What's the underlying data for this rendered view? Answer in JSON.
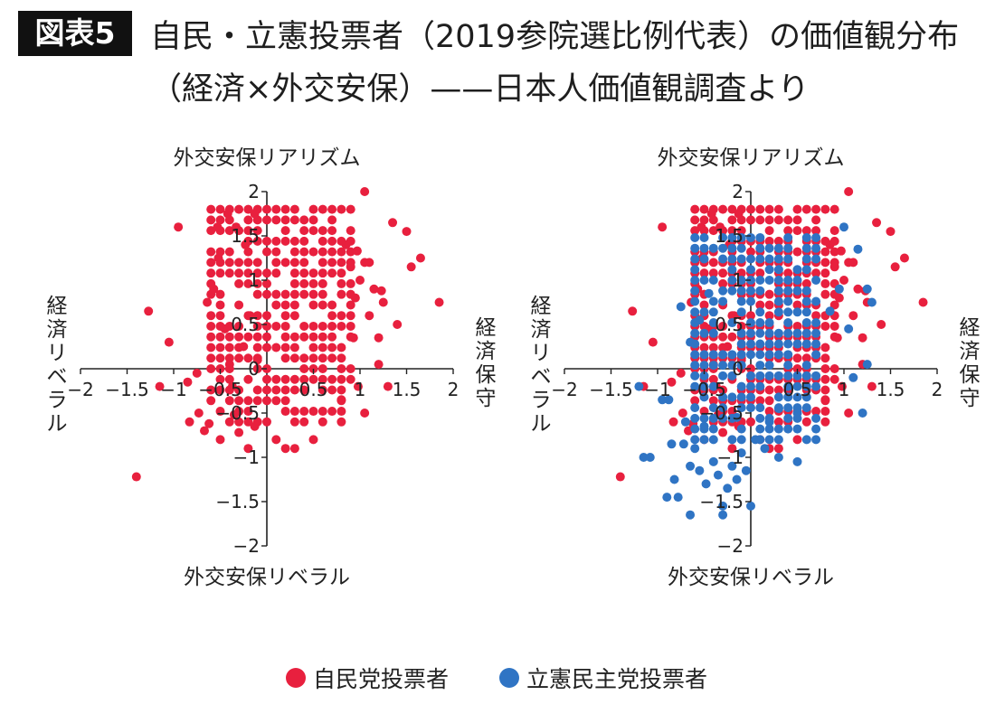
{
  "header": {
    "figure_label": "図表5",
    "title_line1": "自民・立憲投票者（2019参院選比例代表）の価値観分布",
    "title_line2": "（経済×外交安保）——日本人価値観調査より"
  },
  "legend": {
    "ldp": "自民党投票者",
    "cdp": "立憲民主党投票者"
  },
  "colors": {
    "ldp": "#e8203e",
    "cdp": "#2f74c4",
    "axis": "#222222"
  },
  "chart_data": [
    {
      "type": "scatter",
      "axis_labels": {
        "top": "外交安保リアリズム",
        "bottom": "外交安保リベラル",
        "left": "経済リベラル",
        "right": "経済保守"
      },
      "xlim": [
        -2,
        2
      ],
      "ylim": [
        -2,
        2
      ],
      "x_ticks": [
        "-2",
        "-1.5",
        "-1",
        "-0.5",
        "0",
        "0.5",
        "1",
        "1.5",
        "2"
      ],
      "y_ticks": [
        "-2",
        "-1.5",
        "-1",
        "-0.5",
        "0",
        "0.5",
        "1",
        "1.5",
        "2"
      ],
      "grid": false,
      "series": [
        {
          "name": "自民党投票者",
          "color": "#e8203e",
          "points": [
            [
              -1.4,
              -1.22
            ],
            [
              -1.27,
              0.65
            ],
            [
              -1.15,
              -0.2
            ],
            [
              -1.05,
              0.3
            ],
            [
              -0.95,
              1.6
            ],
            [
              -0.85,
              -0.15
            ],
            [
              -0.83,
              -0.6
            ],
            [
              -0.75,
              -0.05
            ],
            [
              -0.73,
              -0.5
            ],
            [
              -0.67,
              -0.7
            ],
            [
              -0.64,
              0.75
            ],
            [
              -0.62,
              -0.62
            ],
            [
              -0.57,
              0.9
            ],
            [
              -0.53,
              1.6
            ],
            [
              -0.52,
              1.25
            ],
            [
              -0.5,
              -0.8
            ],
            [
              -0.45,
              0.45
            ],
            [
              -0.42,
              1.75
            ],
            [
              -0.4,
              0.05
            ],
            [
              -0.37,
              -0.2
            ],
            [
              -0.35,
              -0.52
            ],
            [
              -0.33,
              1.6
            ],
            [
              -0.3,
              -0.72
            ],
            [
              -0.25,
              0.25
            ],
            [
              -0.23,
              1.4
            ],
            [
              -0.2,
              -0.9
            ],
            [
              -0.18,
              0.6
            ],
            [
              -0.13,
              1.75
            ],
            [
              -0.13,
              -0.65
            ],
            [
              -0.1,
              0.1
            ],
            [
              0.1,
              -0.8
            ],
            [
              0.2,
              -0.9
            ],
            [
              0.3,
              -0.9
            ],
            [
              0.5,
              -0.8
            ],
            [
              0.8,
              -0.35
            ],
            [
              0.85,
              1.4
            ],
            [
              0.9,
              1.15
            ],
            [
              0.95,
              0.8
            ],
            [
              0.98,
              -0.2
            ],
            [
              1.05,
              -0.5
            ],
            [
              1.05,
              1.2
            ],
            [
              1.1,
              1.2
            ],
            [
              1.15,
              0.9
            ],
            [
              1.2,
              0.05
            ],
            [
              1.25,
              0.75
            ],
            [
              1.3,
              -0.2
            ],
            [
              1.35,
              1.65
            ],
            [
              1.4,
              0.5
            ],
            [
              1.5,
              1.55
            ],
            [
              1.55,
              1.15
            ],
            [
              1.65,
              1.25
            ],
            [
              1.85,
              0.75
            ],
            [
              1.05,
              2.0
            ],
            [
              1.23,
              0.88
            ],
            [
              0.93,
              0.35
            ],
            [
              0.97,
              1.33
            ],
            [
              1.1,
              0.6
            ],
            [
              1.0,
              1.0
            ],
            [
              1.2,
              0.35
            ]
          ],
          "grid_cluster": {
            "x_range": [
              -0.6,
              0.9
            ],
            "y_range": [
              -0.6,
              1.8
            ],
            "step": 0.1,
            "note": "dense block of points"
          }
        },
        {
          "name": "立憲民主党投票者",
          "color": "#2f74c4",
          "points": [
            [
              -1.2,
              -0.2
            ],
            [
              -1.15,
              -1.0
            ],
            [
              -1.08,
              -1.0
            ],
            [
              -0.95,
              -0.35
            ],
            [
              -0.88,
              -0.35
            ],
            [
              -0.85,
              -0.85
            ],
            [
              -0.9,
              -1.45
            ],
            [
              -0.82,
              -1.25
            ],
            [
              -0.78,
              -1.45
            ],
            [
              -0.72,
              -0.85
            ],
            [
              -0.7,
              -0.6
            ],
            [
              -0.65,
              -1.1
            ],
            [
              -0.6,
              -0.9
            ],
            [
              -0.55,
              -1.15
            ],
            [
              -0.5,
              -0.65
            ],
            [
              -0.48,
              -1.3
            ],
            [
              -0.4,
              -1.05
            ],
            [
              -0.35,
              -1.2
            ],
            [
              -0.3,
              -1.55
            ],
            [
              -0.25,
              -1.35
            ],
            [
              -0.2,
              -1.1
            ],
            [
              -0.15,
              -1.25
            ],
            [
              -0.1,
              -0.95
            ],
            [
              -0.05,
              -1.15
            ],
            [
              0.0,
              -1.55
            ],
            [
              0.05,
              -0.8
            ],
            [
              0.15,
              -0.9
            ],
            [
              0.3,
              -1.0
            ],
            [
              0.5,
              -1.05
            ],
            [
              -0.65,
              -1.65
            ],
            [
              -0.3,
              -1.65
            ],
            [
              -0.15,
              -0.55
            ],
            [
              0.2,
              -0.6
            ],
            [
              0.3,
              -0.45
            ],
            [
              0.5,
              -0.5
            ],
            [
              -0.75,
              0.7
            ],
            [
              -0.65,
              0.3
            ],
            [
              -0.55,
              0.55
            ],
            [
              -0.45,
              0.85
            ],
            [
              1.05,
              0.45
            ],
            [
              1.1,
              -0.1
            ],
            [
              1.15,
              1.35
            ],
            [
              1.25,
              0.05
            ],
            [
              1.25,
              0.9
            ],
            [
              1.3,
              0.75
            ],
            [
              1.0,
              1.6
            ],
            [
              0.85,
              0.65
            ],
            [
              0.95,
              0.9
            ],
            [
              1.2,
              -0.5
            ]
          ],
          "grid_cluster": {
            "x_range": [
              -0.6,
              0.7
            ],
            "y_range": [
              -0.8,
              1.5
            ],
            "step": 0.1,
            "note": "dense block of points overlapping red"
          }
        }
      ]
    }
  ]
}
